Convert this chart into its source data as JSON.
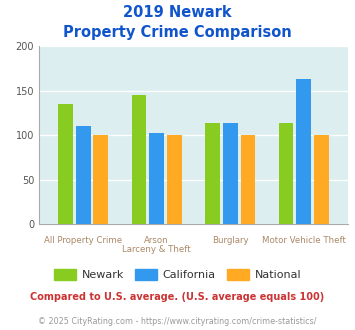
{
  "title_line1": "2019 Newark",
  "title_line2": "Property Crime Comparison",
  "x_labels_top": [
    "All Property Crime",
    "Arson",
    "Burglary",
    "Motor Vehicle Theft"
  ],
  "x_labels_bottom": [
    "",
    "Larceny & Theft",
    "",
    ""
  ],
  "newark": [
    135,
    145,
    114,
    114
  ],
  "california": [
    110,
    103,
    114,
    163
  ],
  "national": [
    100,
    100,
    100,
    100
  ],
  "newark_color": "#88cc22",
  "california_color": "#3399ee",
  "national_color": "#ffaa22",
  "ylim": [
    0,
    200
  ],
  "yticks": [
    0,
    50,
    100,
    150,
    200
  ],
  "bg_color": "#ddeef0",
  "title_color": "#1155cc",
  "xlabel_top_color": "#aa8866",
  "xlabel_bot_color": "#aa8866",
  "footnote_color": "#999999",
  "compare_text": "Compared to U.S. average. (U.S. average equals 100)",
  "compare_color": "#cc3333",
  "footnote_text": "© 2025 CityRating.com - https://www.cityrating.com/crime-statistics/",
  "legend_labels": [
    "Newark",
    "California",
    "National"
  ]
}
